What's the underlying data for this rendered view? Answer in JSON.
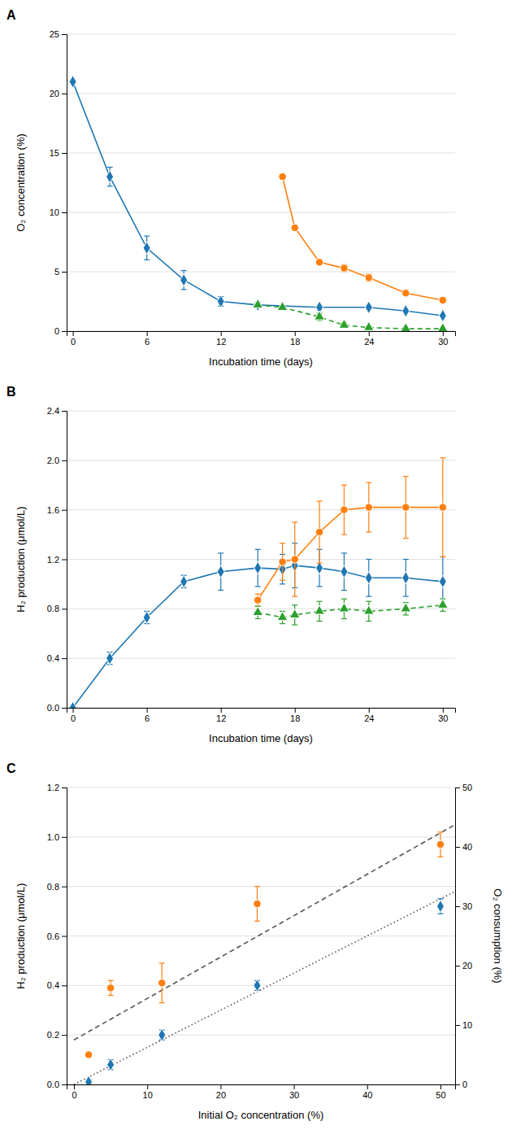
{
  "chart_data": [
    {
      "type": "line",
      "title": "A",
      "xlabel": "Incubation time (days)",
      "ylabel": "O₂ concentration (%)",
      "xlim": [
        -0.5,
        31
      ],
      "ylim": [
        0,
        25
      ],
      "xticks": [
        0,
        6,
        12,
        18,
        24,
        30
      ],
      "yticks": [
        0,
        5,
        10,
        15,
        20,
        25
      ],
      "grid": "y",
      "series": [
        {
          "marker": "diamond",
          "line_style": "solid",
          "x": [
            0,
            3,
            6,
            9,
            12,
            15,
            20,
            24,
            27,
            30
          ],
          "values": [
            21.0,
            13.0,
            7.0,
            4.3,
            2.5,
            2.2,
            2.0,
            2.0,
            1.7,
            1.3
          ],
          "errors": [
            0.0,
            0.8,
            1.0,
            0.8,
            0.4,
            0.2,
            0.2,
            0.2,
            0.1,
            0.1
          ]
        },
        {
          "marker": "circle",
          "line_style": "solid",
          "x": [
            17,
            18,
            20,
            22,
            24,
            27,
            30
          ],
          "values": [
            13.0,
            8.7,
            5.8,
            5.3,
            4.5,
            3.2,
            2.6
          ],
          "errors": [
            0.0,
            0.0,
            0.2,
            0.3,
            0.3,
            0.2,
            0.2
          ]
        },
        {
          "marker": "triangle",
          "line_style": "dashed",
          "x": [
            15,
            17,
            20,
            22,
            24,
            27,
            30
          ],
          "values": [
            2.2,
            2.0,
            1.2,
            0.5,
            0.3,
            0.2,
            0.2
          ],
          "errors": [
            0.2,
            0.15,
            0.3,
            0.2,
            0.1,
            0.05,
            0.05
          ]
        }
      ]
    },
    {
      "type": "line",
      "title": "B",
      "xlabel": "Incubation time (days)",
      "ylabel": "H₂ production (μmol/L)",
      "xlim": [
        -0.5,
        31
      ],
      "ylim": [
        0,
        2.4
      ],
      "xticks": [
        0,
        6,
        12,
        18,
        24,
        30
      ],
      "yticks": [
        {
          "value": 0,
          "label": "0.0"
        },
        0.4,
        0.8,
        1.2,
        1.6,
        {
          "value": 2,
          "label": "2.0"
        },
        2.4
      ],
      "grid": "y",
      "series": [
        {
          "marker": "diamond",
          "line_style": "solid",
          "x": [
            0,
            3,
            6,
            9,
            12,
            15,
            17,
            18,
            20,
            22,
            24,
            27,
            30
          ],
          "values": [
            0.0,
            0.4,
            0.73,
            1.02,
            1.1,
            1.13,
            1.12,
            1.15,
            1.13,
            1.1,
            1.05,
            1.05,
            1.02
          ],
          "errors": [
            0.0,
            0.05,
            0.05,
            0.05,
            0.15,
            0.15,
            0.12,
            0.18,
            0.15,
            0.15,
            0.15,
            0.15,
            0.2
          ]
        },
        {
          "marker": "circle",
          "line_style": "solid",
          "x": [
            15,
            17,
            18,
            20,
            22,
            24,
            27,
            30
          ],
          "values": [
            0.87,
            1.18,
            1.2,
            1.42,
            1.6,
            1.62,
            1.62,
            1.62
          ],
          "errors": [
            0.05,
            0.15,
            0.3,
            0.25,
            0.2,
            0.2,
            0.25,
            0.4
          ]
        },
        {
          "marker": "triangle",
          "line_style": "dashed",
          "x": [
            15,
            17,
            18,
            20,
            22,
            24,
            27,
            30
          ],
          "values": [
            0.77,
            0.73,
            0.75,
            0.78,
            0.8,
            0.78,
            0.8,
            0.83
          ],
          "errors": [
            0.05,
            0.05,
            0.08,
            0.08,
            0.08,
            0.08,
            0.05,
            0.05
          ]
        }
      ]
    },
    {
      "type": "scatter",
      "title": "C",
      "xlabel": "Initial O₂ concentration (%)",
      "ylabel": "H₂ production (μmol/L)",
      "y2label": "O₂ consumption (%)",
      "xlim": [
        -1,
        52
      ],
      "ylim": [
        0,
        1.2
      ],
      "y2lim": [
        0,
        50
      ],
      "xticks": [
        0,
        10,
        20,
        30,
        40,
        50
      ],
      "yticks": [
        {
          "value": 0,
          "label": "0.0"
        },
        0.2,
        0.4,
        0.6,
        0.8,
        {
          "value": 1,
          "label": "1.0"
        },
        1.2
      ],
      "y2ticks": [
        0,
        10,
        20,
        30,
        40,
        50
      ],
      "grid": "y",
      "series": [
        {
          "type": "line",
          "line_style": "dashed",
          "x": [
            0,
            52
          ],
          "values": [
            0.18,
            1.05
          ]
        },
        {
          "type": "line",
          "line_style": "dotted",
          "x": [
            0,
            52
          ],
          "values": [
            0.0,
            0.78
          ]
        },
        {
          "type": "scatter",
          "marker": "circle",
          "x": [
            2,
            5,
            12,
            25,
            50
          ],
          "values": [
            0.12,
            0.39,
            0.41,
            0.73,
            0.97
          ],
          "errors": [
            0.0,
            0.03,
            0.08,
            0.07,
            0.05
          ]
        },
        {
          "type": "scatter",
          "marker": "diamond",
          "x": [
            2,
            5,
            12,
            25,
            50
          ],
          "values": [
            0.01,
            0.08,
            0.2,
            0.4,
            0.72
          ],
          "errors": [
            0.01,
            0.02,
            0.02,
            0.02,
            0.03
          ]
        }
      ]
    }
  ]
}
